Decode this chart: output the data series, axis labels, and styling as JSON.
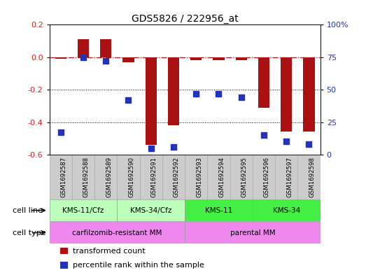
{
  "title": "GDS5826 / 222956_at",
  "samples": [
    "GSM1692587",
    "GSM1692588",
    "GSM1692589",
    "GSM1692590",
    "GSM1692591",
    "GSM1692592",
    "GSM1692593",
    "GSM1692594",
    "GSM1692595",
    "GSM1692596",
    "GSM1692597",
    "GSM1692598"
  ],
  "transformed_count": [
    -0.01,
    0.11,
    0.11,
    -0.03,
    -0.54,
    -0.42,
    -0.02,
    -0.02,
    -0.02,
    -0.31,
    -0.46,
    -0.46
  ],
  "percentile_rank": [
    17,
    75,
    72,
    42,
    5,
    6,
    47,
    47,
    44,
    15,
    10,
    8
  ],
  "ylim_left": [
    -0.6,
    0.2
  ],
  "ylim_right": [
    0,
    100
  ],
  "yticks_left": [
    -0.6,
    -0.4,
    -0.2,
    0.0,
    0.2
  ],
  "yticks_right": [
    0,
    25,
    50,
    75,
    100
  ],
  "ytick_labels_right": [
    "0",
    "25",
    "50",
    "75",
    "100%"
  ],
  "hline_y": 0.0,
  "dotted_lines": [
    -0.2,
    -0.4
  ],
  "bar_color": "#aa1111",
  "dot_color": "#2233bb",
  "cell_line_groups": [
    {
      "label": "KMS-11/Cfz",
      "start": 0,
      "end": 2,
      "color": "#bbffbb"
    },
    {
      "label": "KMS-34/Cfz",
      "start": 3,
      "end": 5,
      "color": "#bbffbb"
    },
    {
      "label": "KMS-11",
      "start": 6,
      "end": 8,
      "color": "#44ee44"
    },
    {
      "label": "KMS-34",
      "start": 9,
      "end": 11,
      "color": "#44ee44"
    }
  ],
  "cell_type_colors": [
    "#ee88ee",
    "#ee88ee"
  ],
  "cell_type_groups": [
    {
      "label": "carfilzomib-resistant MM",
      "start": 0,
      "end": 5
    },
    {
      "label": "parental MM",
      "start": 6,
      "end": 11
    }
  ],
  "legend_items": [
    {
      "label": "transformed count",
      "color": "#aa1111"
    },
    {
      "label": "percentile rank within the sample",
      "color": "#2233bb"
    }
  ],
  "cell_line_label": "cell line",
  "cell_type_label": "cell type",
  "bg_color": "#ffffff",
  "tick_label_color_left": "#cc2222",
  "tick_label_color_right": "#2233bb",
  "sample_bg": "#cccccc"
}
